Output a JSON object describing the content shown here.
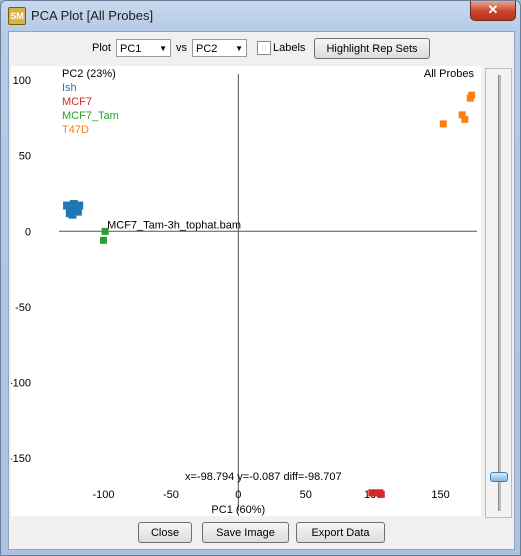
{
  "window": {
    "title": "PCA Plot [All Probes]",
    "close_glyph": "✕"
  },
  "toolbar": {
    "plot_label": "Plot",
    "x_select": "PC1",
    "vs_label": "vs",
    "y_select": "PC2",
    "labels_checkbox_label": "Labels",
    "labels_checked": false,
    "highlight_button": "Highlight Rep Sets"
  },
  "buttons": {
    "close": "Close",
    "save_image": "Save Image",
    "export_data": "Export Data"
  },
  "slider": {
    "level": 0.92
  },
  "chart_data": {
    "type": "scatter",
    "ylabel": "PC2 (23%)",
    "xlabel": "PC1 (60%)",
    "subset_label": "All Probes",
    "xlim": [
      -133,
      177
    ],
    "ylim": [
      -185,
      104
    ],
    "x_ticks": [
      -100,
      -50,
      0,
      50,
      100,
      150
    ],
    "y_ticks": [
      100,
      50,
      0,
      -50,
      -100,
      -150
    ],
    "grid": false,
    "legend_position": "top-left",
    "series": [
      {
        "name": "Ish",
        "color": "#1f77b4",
        "size": 8,
        "points": [
          [
            -124,
            16
          ],
          [
            -121,
            14
          ],
          [
            -127,
            17
          ],
          [
            -119,
            13
          ],
          [
            -123,
            11
          ],
          [
            -118,
            17
          ],
          [
            -125,
            12
          ],
          [
            -122,
            18
          ]
        ]
      },
      {
        "name": "MCF7",
        "color": "#d62728",
        "size": 7,
        "points": [
          [
            99,
            -173
          ],
          [
            102,
            -173
          ],
          [
            105,
            -173
          ],
          [
            106,
            -174
          ]
        ]
      },
      {
        "name": "MCF7_Tam",
        "color": "#2ca02c",
        "size": 7,
        "points": [
          [
            -98.794,
            -0.087
          ],
          [
            -100,
            -6
          ]
        ]
      },
      {
        "name": "T47D",
        "color": "#ff7f0e",
        "size": 7,
        "points": [
          [
            152,
            71
          ],
          [
            166,
            77
          ],
          [
            168,
            74
          ],
          [
            172,
            88
          ],
          [
            173,
            90
          ]
        ]
      }
    ],
    "annotation": {
      "text": "MCF7_Tam-3h_tophat.bam",
      "x": -98.794,
      "y": -0.087
    },
    "readout": "x=-98.794 y=-0.087 diff=-98.707"
  }
}
